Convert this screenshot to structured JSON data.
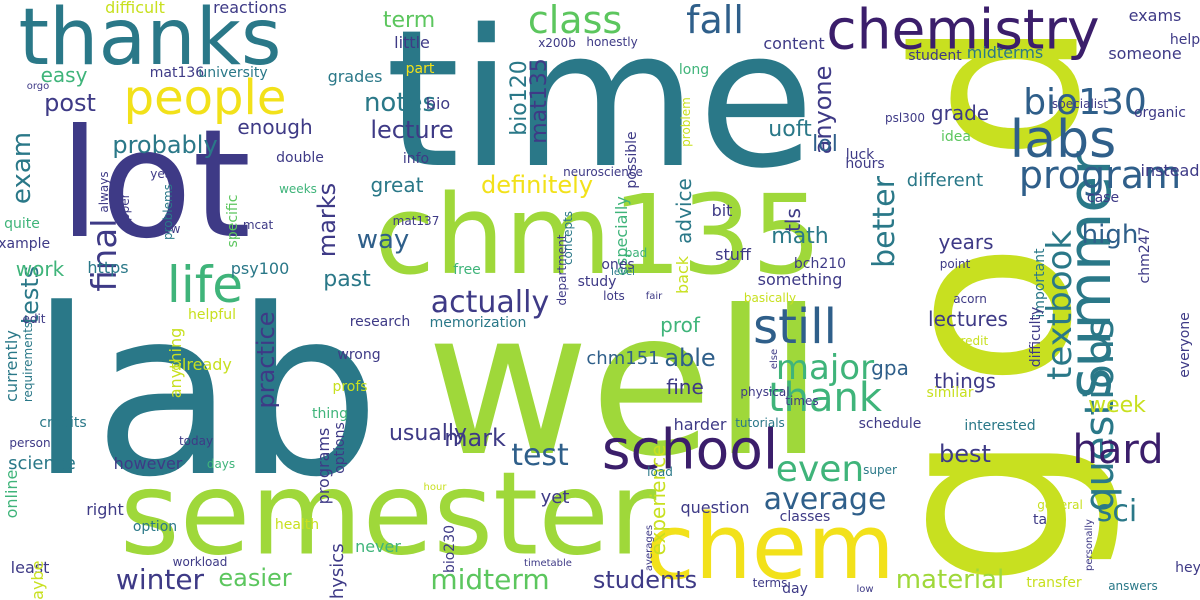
{
  "palette": {
    "dark_purple": "#3b1e6b",
    "indigo": "#3e3a86",
    "blue": "#2f5f8a",
    "teal": "#2a7888",
    "green": "#3fb47a",
    "mid_green": "#5cc65e",
    "lime": "#9fd83a",
    "yellow_green": "#c8e020",
    "yellow": "#f2e11a"
  },
  "words": [
    {
      "t": "time",
      "c": "teal",
      "r": 0
    },
    {
      "t": "lab",
      "c": "teal",
      "r": 0
    },
    {
      "t": "well",
      "c": "lime",
      "r": 0
    },
    {
      "t": "lot",
      "c": "indigo",
      "r": 0
    },
    {
      "t": "chm135",
      "c": "lime",
      "r": 0
    },
    {
      "t": "semester",
      "c": "lime",
      "r": 0
    },
    {
      "t": "thanks",
      "c": "teal",
      "r": 0
    },
    {
      "t": "d",
      "c": "yellow_green",
      "r": 90
    },
    {
      "t": "o",
      "c": "yellow_green",
      "r": 90
    },
    {
      "t": "g",
      "c": "yellow_green",
      "r": 90
    },
    {
      "t": "chem",
      "c": "yellow",
      "r": 0
    },
    {
      "t": "chemistry",
      "c": "dark_purple",
      "r": 0
    },
    {
      "t": "summer",
      "c": "teal",
      "r": 90
    },
    {
      "t": "people",
      "c": "yellow",
      "r": 0
    },
    {
      "t": "life",
      "c": "green",
      "r": 0
    },
    {
      "t": "school",
      "c": "dark_purple",
      "r": 0
    },
    {
      "t": "still",
      "c": "blue",
      "r": 0
    },
    {
      "t": "labs",
      "c": "blue",
      "r": 0
    },
    {
      "t": "program",
      "c": "blue",
      "r": 0
    },
    {
      "t": "bio130",
      "c": "blue",
      "r": 0
    },
    {
      "t": "textbook",
      "c": "teal",
      "r": 90
    },
    {
      "t": "questions",
      "c": "teal",
      "r": 90
    },
    {
      "t": "hard",
      "c": "dark_purple",
      "r": 0
    },
    {
      "t": "thank",
      "c": "green",
      "r": 0
    },
    {
      "t": "major",
      "c": "green",
      "r": 0
    },
    {
      "t": "final",
      "c": "indigo",
      "r": 90
    },
    {
      "t": "exam",
      "c": "teal",
      "r": 90
    },
    {
      "t": "class",
      "c": "mid_green",
      "r": 0
    },
    {
      "t": "fall",
      "c": "blue",
      "r": 0
    },
    {
      "t": "even",
      "c": "green",
      "r": 0
    },
    {
      "t": "average",
      "c": "blue",
      "r": 0
    },
    {
      "t": "winter",
      "c": "indigo",
      "r": 0
    },
    {
      "t": "easier",
      "c": "mid_green",
      "r": 0
    },
    {
      "t": "midterm",
      "c": "mid_green",
      "r": 0
    },
    {
      "t": "students",
      "c": "indigo",
      "r": 0
    },
    {
      "t": "material",
      "c": "lime",
      "r": 0
    },
    {
      "t": "actually",
      "c": "indigo",
      "r": 0
    },
    {
      "t": "notes",
      "c": "teal",
      "r": 0
    },
    {
      "t": "lecture",
      "c": "indigo",
      "r": 0
    },
    {
      "t": "definitely",
      "c": "yellow",
      "r": 0
    },
    {
      "t": "probably",
      "c": "teal",
      "r": 0
    },
    {
      "t": "post",
      "c": "indigo",
      "r": 0
    },
    {
      "t": "easy",
      "c": "green",
      "r": 0
    },
    {
      "t": "term",
      "c": "mid_green",
      "r": 0
    },
    {
      "t": "test",
      "c": "blue",
      "r": 0
    },
    {
      "t": "mark",
      "c": "indigo",
      "r": 0
    },
    {
      "t": "tests",
      "c": "teal",
      "r": 90
    },
    {
      "t": "marks",
      "c": "indigo",
      "r": 90
    },
    {
      "t": "practice",
      "c": "indigo",
      "r": 90
    },
    {
      "t": "work",
      "c": "green",
      "r": 0
    },
    {
      "t": "past",
      "c": "teal",
      "r": 0
    },
    {
      "t": "way",
      "c": "blue",
      "r": 0
    },
    {
      "t": "better",
      "c": "teal",
      "r": 90
    },
    {
      "t": "high",
      "c": "blue",
      "r": 0
    },
    {
      "t": "sci",
      "c": "teal",
      "r": 0
    },
    {
      "t": "best",
      "c": "indigo",
      "r": 0
    },
    {
      "t": "anyone",
      "c": "indigo",
      "r": 90
    },
    {
      "t": "lol",
      "c": "blue",
      "r": 0
    },
    {
      "t": "enough",
      "c": "indigo",
      "r": 0
    },
    {
      "t": "bio120",
      "c": "teal",
      "r": 90
    },
    {
      "t": "mat135",
      "c": "indigo",
      "r": 90
    },
    {
      "t": "great",
      "c": "teal",
      "r": 0
    },
    {
      "t": "years",
      "c": "indigo",
      "r": 0
    },
    {
      "t": "lectures",
      "c": "indigo",
      "r": 0
    },
    {
      "t": "things",
      "c": "indigo",
      "r": 0
    },
    {
      "t": "able",
      "c": "blue",
      "r": 0
    },
    {
      "t": "fine",
      "c": "indigo",
      "r": 0
    },
    {
      "t": "week",
      "c": "yellow_green",
      "r": 0
    },
    {
      "t": "prof",
      "c": "green",
      "r": 0
    },
    {
      "t": "grade",
      "c": "indigo",
      "r": 0
    },
    {
      "t": "uoft",
      "c": "teal",
      "r": 0
    },
    {
      "t": "math",
      "c": "teal",
      "r": 0
    },
    {
      "t": "gpa",
      "c": "blue",
      "r": 0
    },
    {
      "t": "something",
      "c": "indigo",
      "r": 0
    },
    {
      "t": "usually",
      "c": "indigo",
      "r": 0
    },
    {
      "t": "science",
      "c": "teal",
      "r": 0
    },
    {
      "t": "however",
      "c": "indigo",
      "r": 0
    },
    {
      "t": "programs",
      "c": "indigo",
      "r": 90
    },
    {
      "t": "online",
      "c": "green",
      "r": 90
    },
    {
      "t": "right",
      "c": "indigo",
      "r": 0
    },
    {
      "t": "physics",
      "c": "indigo",
      "r": 90
    },
    {
      "t": "experience",
      "c": "yellow_green",
      "r": 90
    },
    {
      "t": "yet",
      "c": "indigo",
      "r": 0
    },
    {
      "t": "question",
      "c": "indigo",
      "r": 0
    },
    {
      "t": "classes",
      "c": "indigo",
      "r": 0
    },
    {
      "t": "day",
      "c": "indigo",
      "r": 0
    },
    {
      "t": "hey",
      "c": "indigo",
      "r": 0
    },
    {
      "t": "ta",
      "c": "indigo",
      "r": 0
    },
    {
      "t": "never",
      "c": "green",
      "r": 0
    },
    {
      "t": "least",
      "c": "indigo",
      "r": 0
    },
    {
      "t": "maybe",
      "c": "yellow_green",
      "r": 90
    },
    {
      "t": "chm151",
      "c": "blue",
      "r": 0
    },
    {
      "t": "harder",
      "c": "indigo",
      "r": 0
    },
    {
      "t": "thing",
      "c": "green",
      "r": 0
    },
    {
      "t": "stuff",
      "c": "indigo",
      "r": 0
    },
    {
      "t": "bit",
      "c": "indigo",
      "r": 0
    },
    {
      "t": "advice",
      "c": "teal",
      "r": 90
    },
    {
      "t": "back",
      "c": "yellow_green",
      "r": 90
    },
    {
      "t": "tls",
      "c": "indigo",
      "r": 90
    },
    {
      "t": "different",
      "c": "teal",
      "r": 0
    },
    {
      "t": "hours",
      "c": "indigo",
      "r": 0
    },
    {
      "t": "luck",
      "c": "indigo",
      "r": 0
    },
    {
      "t": "student",
      "c": "indigo",
      "r": 0
    },
    {
      "t": "midterms",
      "c": "teal",
      "r": 0
    },
    {
      "t": "exams",
      "c": "indigo",
      "r": 0
    },
    {
      "t": "help",
      "c": "indigo",
      "r": 0
    },
    {
      "t": "someone",
      "c": "indigo",
      "r": 0
    },
    {
      "t": "specialist",
      "c": "indigo",
      "r": 0
    },
    {
      "t": "organic",
      "c": "indigo",
      "r": 0
    },
    {
      "t": "idea",
      "c": "mid_green",
      "r": 0
    },
    {
      "t": "psl300",
      "c": "indigo",
      "r": 0
    },
    {
      "t": "instead",
      "c": "indigo",
      "r": 0
    },
    {
      "t": "case",
      "c": "indigo",
      "r": 0
    },
    {
      "t": "bch210",
      "c": "indigo",
      "r": 0
    },
    {
      "t": "point",
      "c": "indigo",
      "r": 0
    },
    {
      "t": "acorn",
      "c": "indigo",
      "r": 0
    },
    {
      "t": "everyone",
      "c": "indigo",
      "r": 90
    },
    {
      "t": "chm247",
      "c": "indigo",
      "r": 90
    },
    {
      "t": "important",
      "c": "teal",
      "r": 90
    },
    {
      "t": "difficulty",
      "c": "indigo",
      "r": 90
    },
    {
      "t": "credit",
      "c": "yellow_green",
      "r": 0
    },
    {
      "t": "similar",
      "c": "yellow_green",
      "r": 0
    },
    {
      "t": "interested",
      "c": "teal",
      "r": 0
    },
    {
      "t": "schedule",
      "c": "indigo",
      "r": 0
    },
    {
      "t": "super",
      "c": "teal",
      "r": 0
    },
    {
      "t": "general",
      "c": "yellow_green",
      "r": 0
    },
    {
      "t": "transfer",
      "c": "yellow_green",
      "r": 0
    },
    {
      "t": "answers",
      "c": "teal",
      "r": 0
    },
    {
      "t": "low",
      "c": "indigo",
      "r": 0
    },
    {
      "t": "terms",
      "c": "indigo",
      "r": 0
    },
    {
      "t": "physical",
      "c": "indigo",
      "r": 0
    },
    {
      "t": "times",
      "c": "indigo",
      "r": 0
    },
    {
      "t": "else",
      "c": "indigo",
      "r": 90
    },
    {
      "t": "basically",
      "c": "yellow_green",
      "r": 0
    },
    {
      "t": "tutorials",
      "c": "teal",
      "r": 0
    },
    {
      "t": "load",
      "c": "teal",
      "r": 0
    },
    {
      "t": "timetable",
      "c": "indigo",
      "r": 0
    },
    {
      "t": "averages",
      "c": "indigo",
      "r": 90
    },
    {
      "t": "bio230",
      "c": "indigo",
      "r": 90
    },
    {
      "t": "health",
      "c": "yellow_green",
      "r": 0
    },
    {
      "t": "personally",
      "c": "indigo",
      "r": 90
    },
    {
      "t": "workload",
      "c": "indigo",
      "r": 0
    },
    {
      "t": "option",
      "c": "teal",
      "r": 0
    },
    {
      "t": "days",
      "c": "green",
      "r": 0
    },
    {
      "t": "options",
      "c": "indigo",
      "r": 90
    },
    {
      "t": "hour",
      "c": "yellow_green",
      "r": 0
    },
    {
      "t": "profs",
      "c": "yellow_green",
      "r": 0
    },
    {
      "t": "today",
      "c": "indigo",
      "r": 0
    },
    {
      "t": "wrong",
      "c": "indigo",
      "r": 0
    },
    {
      "t": "research",
      "c": "indigo",
      "r": 0
    },
    {
      "t": "memorization",
      "c": "teal",
      "r": 0
    },
    {
      "t": "already",
      "c": "yellow_green",
      "r": 0
    },
    {
      "t": "helpful",
      "c": "yellow_green",
      "r": 0
    },
    {
      "t": "anything",
      "c": "yellow_green",
      "r": 90
    },
    {
      "t": "psy100",
      "c": "teal",
      "r": 0
    },
    {
      "t": "https",
      "c": "teal",
      "r": 0
    },
    {
      "t": "mcat",
      "c": "indigo",
      "r": 0
    },
    {
      "t": "specific",
      "c": "mid_green",
      "r": 90
    },
    {
      "t": "credits",
      "c": "teal",
      "r": 0
    },
    {
      "t": "person",
      "c": "indigo",
      "r": 0
    },
    {
      "t": "currently",
      "c": "teal",
      "r": 90
    },
    {
      "t": "requirements",
      "c": "teal",
      "r": 90
    },
    {
      "t": "edit",
      "c": "indigo",
      "r": 0
    },
    {
      "t": "example",
      "c": "indigo",
      "r": 0
    },
    {
      "t": "quite",
      "c": "green",
      "r": 0
    },
    {
      "t": "new",
      "c": "indigo",
      "r": 0
    },
    {
      "t": "upper",
      "c": "indigo",
      "r": 90
    },
    {
      "t": "problems",
      "c": "teal",
      "r": 90
    },
    {
      "t": "always",
      "c": "indigo",
      "r": 90
    },
    {
      "t": "yeah",
      "c": "indigo",
      "r": 0
    },
    {
      "t": "extra",
      "c": "indigo",
      "r": 0
    },
    {
      "t": "double",
      "c": "indigo",
      "r": 0
    },
    {
      "t": "info",
      "c": "indigo",
      "r": 0
    },
    {
      "t": "weeks",
      "c": "green",
      "r": 0
    },
    {
      "t": "mat137",
      "c": "indigo",
      "r": 0
    },
    {
      "t": "neuroscience",
      "c": "indigo",
      "r": 0
    },
    {
      "t": "possible",
      "c": "indigo",
      "r": 90
    },
    {
      "t": "problem",
      "c": "yellow_green",
      "r": 90
    },
    {
      "t": "especially",
      "c": "green",
      "r": 90
    },
    {
      "t": "ones",
      "c": "indigo",
      "r": 0
    },
    {
      "t": "concepts",
      "c": "teal",
      "r": 90
    },
    {
      "t": "department",
      "c": "indigo",
      "r": 90
    },
    {
      "t": "free",
      "c": "green",
      "r": 0
    },
    {
      "t": "study",
      "c": "indigo",
      "r": 0
    },
    {
      "t": "lots",
      "c": "indigo",
      "r": 0
    },
    {
      "t": "fair",
      "c": "indigo",
      "r": 0
    },
    {
      "t": "level",
      "c": "teal",
      "r": 0
    },
    {
      "t": "bad",
      "c": "green",
      "r": 0
    },
    {
      "t": "grades",
      "c": "teal",
      "r": 0
    },
    {
      "t": "bio",
      "c": "indigo",
      "r": 0
    },
    {
      "t": "little",
      "c": "indigo",
      "r": 0
    },
    {
      "t": "part",
      "c": "yellow",
      "r": 0
    },
    {
      "t": "x200b",
      "c": "indigo",
      "r": 0
    },
    {
      "t": "honestly",
      "c": "indigo",
      "r": 0
    },
    {
      "t": "long",
      "c": "green",
      "r": 0
    },
    {
      "t": "content",
      "c": "indigo",
      "r": 0
    },
    {
      "t": "difficult",
      "c": "yellow_green",
      "r": 0
    },
    {
      "t": "reactions",
      "c": "indigo",
      "r": 0
    },
    {
      "t": "mat136",
      "c": "indigo",
      "r": 0
    },
    {
      "t": "university",
      "c": "teal",
      "r": 0
    },
    {
      "t": "orgo",
      "c": "indigo",
      "r": 0
    }
  ]
}
